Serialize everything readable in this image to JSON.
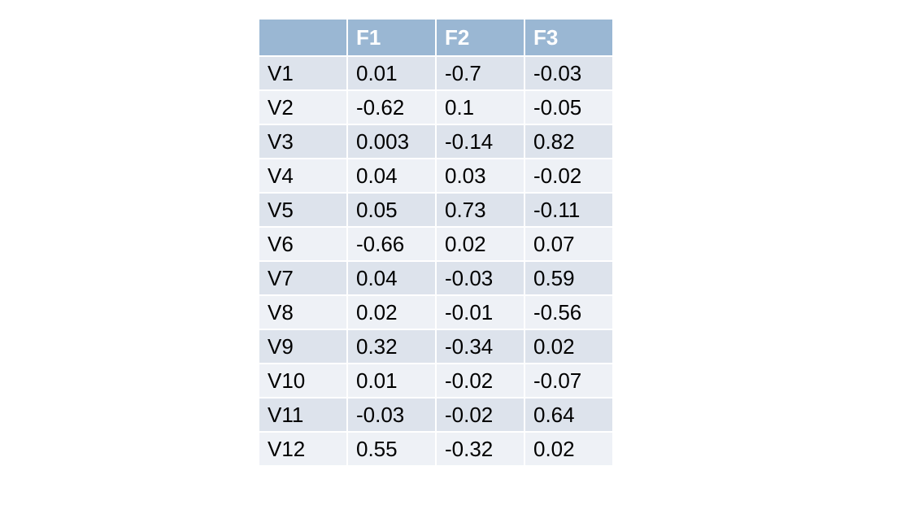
{
  "table": {
    "headers": [
      "",
      "F1",
      "F2",
      "F3"
    ],
    "rows": [
      [
        "V1",
        "0.01",
        "-0.7",
        "-0.03"
      ],
      [
        "V2",
        "-0.62",
        "0.1",
        "-0.05"
      ],
      [
        "V3",
        "0.003",
        "-0.14",
        "0.82"
      ],
      [
        "V4",
        "0.04",
        "0.03",
        "-0.02"
      ],
      [
        "V5",
        "0.05",
        "0.73",
        "-0.11"
      ],
      [
        "V6",
        "-0.66",
        "0.02",
        "0.07"
      ],
      [
        "V7",
        "0.04",
        "-0.03",
        "0.59"
      ],
      [
        "V8",
        "0.02",
        "-0.01",
        "-0.56"
      ],
      [
        "V9",
        "0.32",
        "-0.34",
        "0.02"
      ],
      [
        "V10",
        "0.01",
        "-0.02",
        "-0.07"
      ],
      [
        "V11",
        "-0.03",
        "-0.02",
        "0.64"
      ],
      [
        "V12",
        "0.55",
        "-0.32",
        "0.02"
      ]
    ]
  },
  "colors": {
    "header_bg": "#9ab7d3",
    "header_text": "#ffffff",
    "row_odd_bg": "#dde3ec",
    "row_even_bg": "#eef1f6"
  }
}
